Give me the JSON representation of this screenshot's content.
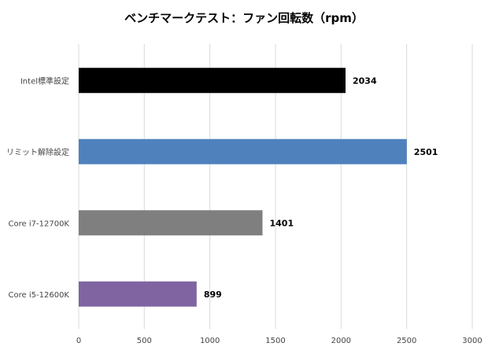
{
  "chart_data": {
    "type": "bar",
    "orientation": "horizontal",
    "title": "ベンチマークテスト：ファン回転数（rpm）",
    "categories": [
      "Intel標準設定",
      "リミット解除設定",
      "Core i7-12700K",
      "Core i5-12600K"
    ],
    "values": [
      2034,
      2501,
      1401,
      899
    ],
    "colors": [
      "#000000",
      "#4f81bd",
      "#7f7f7f",
      "#8064a2"
    ],
    "xlim": [
      0,
      3000
    ],
    "xticks": [
      "0",
      "500",
      "1000",
      "1500",
      "2000",
      "2500",
      "3000"
    ],
    "grid": "vertical",
    "data_labels": [
      "2034",
      "2501",
      "1401",
      "899"
    ],
    "xlabel": "",
    "ylabel": ""
  }
}
